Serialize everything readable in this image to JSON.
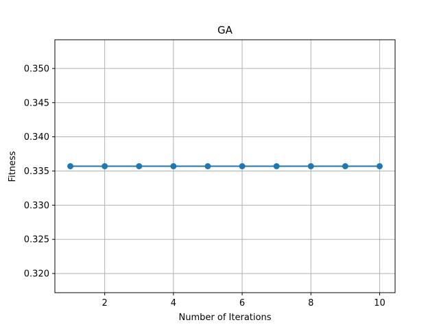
{
  "chart_data": {
    "type": "line",
    "title": "GA",
    "xlabel": "Number of Iterations",
    "ylabel": "Fitness",
    "xlim": [
      0.55,
      10.45
    ],
    "ylim": [
      0.3172,
      0.3542
    ],
    "xticks": [
      2,
      4,
      6,
      8,
      10
    ],
    "xtick_labels": [
      "2",
      "4",
      "6",
      "8",
      "10"
    ],
    "yticks": [
      0.32,
      0.325,
      0.33,
      0.335,
      0.34,
      0.345,
      0.35
    ],
    "ytick_labels": [
      "0.320",
      "0.325",
      "0.330",
      "0.335",
      "0.340",
      "0.345",
      "0.350"
    ],
    "grid": true,
    "series": [
      {
        "x": [
          1,
          2,
          3,
          4,
          5,
          6,
          7,
          8,
          9,
          10
        ],
        "values": [
          0.3357,
          0.3357,
          0.3357,
          0.3357,
          0.3357,
          0.3357,
          0.3357,
          0.3357,
          0.3357,
          0.3357
        ],
        "color": "#1f77b4",
        "marker": "circle"
      }
    ],
    "grid_color": "#b0b0b0",
    "axis_color": "#000000"
  }
}
